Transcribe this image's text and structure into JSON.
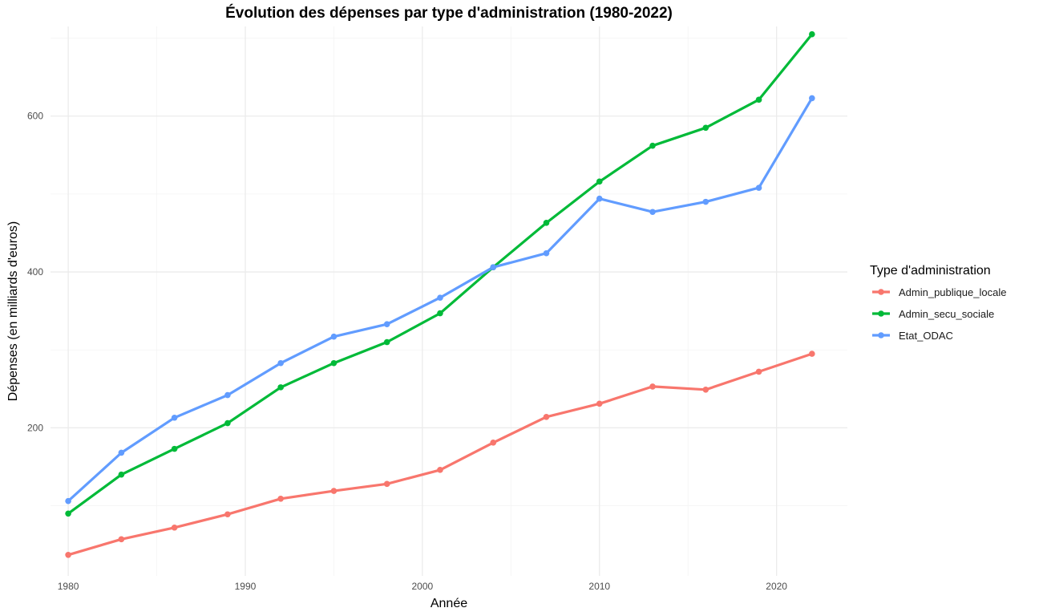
{
  "chart_data": {
    "type": "line",
    "title": "Évolution des dépenses par type d'administration (1980-2022)",
    "xlabel": "Année",
    "ylabel": "Dépenses (en milliards d'euros)",
    "xlim": [
      1979,
      2024
    ],
    "ylim": [
      10,
      715
    ],
    "x_ticks": [
      1980,
      1990,
      2000,
      2010,
      2020
    ],
    "x_minor": [
      1985,
      1995,
      2005,
      2015
    ],
    "y_ticks": [
      200,
      400,
      600
    ],
    "y_minor": [
      100,
      300,
      500,
      700
    ],
    "grid": true,
    "legend": {
      "title": "Type d'administration",
      "position": "right"
    },
    "x": [
      1980,
      1983,
      1986,
      1989,
      1992,
      1995,
      1998,
      2001,
      2004,
      2007,
      2010,
      2013,
      2016,
      2019,
      2022
    ],
    "series": [
      {
        "name": "Admin_publique_locale",
        "color": "#F8766D",
        "values": [
          37,
          57,
          72,
          89,
          109,
          119,
          128,
          146,
          181,
          214,
          231,
          253,
          249,
          272,
          295
        ]
      },
      {
        "name": "Admin_secu_sociale",
        "color": "#00BA38",
        "values": [
          90,
          140,
          173,
          206,
          252,
          283,
          310,
          347,
          406,
          463,
          516,
          562,
          585,
          621,
          705
        ]
      },
      {
        "name": "Etat_ODAC",
        "color": "#619CFF",
        "values": [
          106,
          168,
          213,
          242,
          283,
          317,
          333,
          367,
          406,
          424,
          494,
          477,
          490,
          508,
          623
        ]
      }
    ]
  }
}
